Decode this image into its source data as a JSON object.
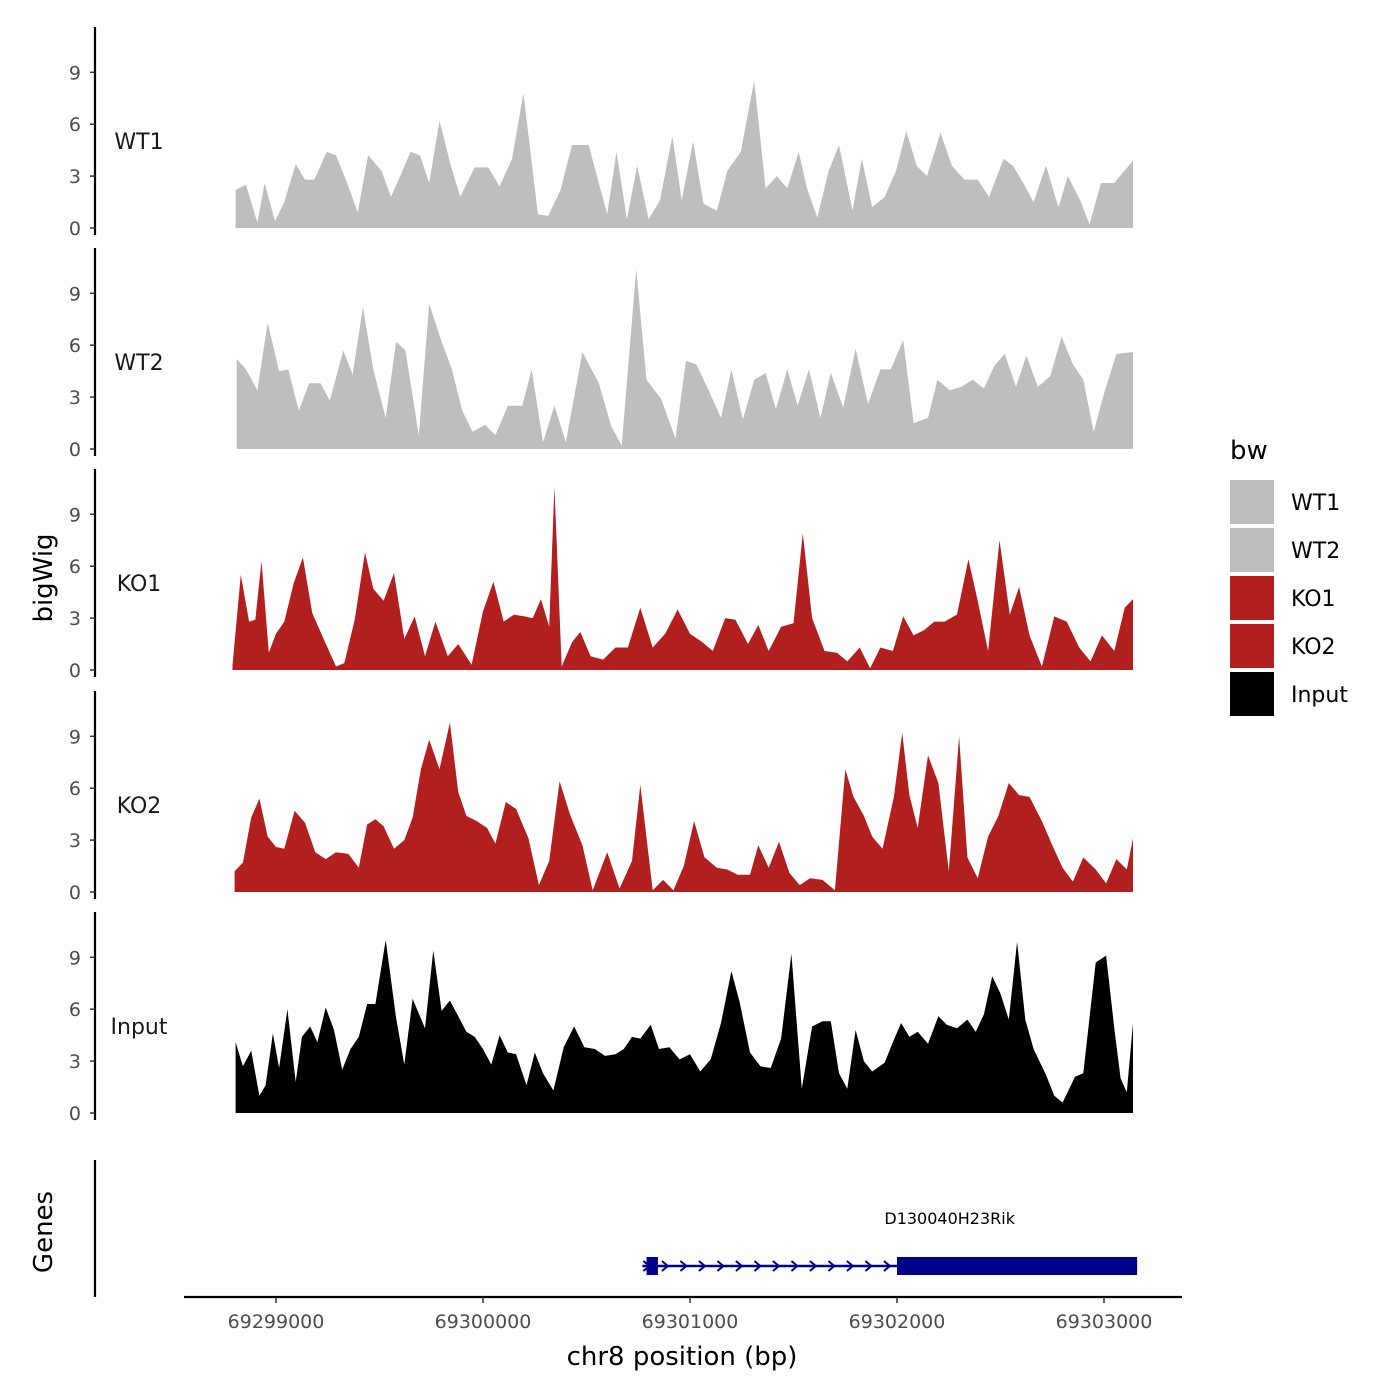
{
  "chart_data": {
    "type": "area",
    "y_axis_title": "bigWig",
    "genes_axis_title": "Genes",
    "x_axis_title": "chr8 position (bp)",
    "x_range": [
      69298650,
      69303200
    ],
    "x_ticks": [
      69299000,
      69300000,
      69301000,
      69302000,
      69303000
    ],
    "x_tick_labels": [
      "69299000",
      "69300000",
      "69301000",
      "69302000",
      "69303000"
    ],
    "y_range": [
      0,
      11.5
    ],
    "y_ticks": [
      0,
      3,
      6,
      9
    ],
    "y_tick_labels": [
      "0",
      "3",
      "6",
      "9"
    ],
    "legend": {
      "title": "bw",
      "entries": [
        {
          "label": "WT1",
          "color": "#bebebe"
        },
        {
          "label": "WT2",
          "color": "#bebebe"
        },
        {
          "label": "KO1",
          "color": "#b21f1f"
        },
        {
          "label": "KO2",
          "color": "#b21f1f"
        },
        {
          "label": "Input",
          "color": "#000000"
        }
      ]
    },
    "series": [
      {
        "name": "WT1",
        "color": "#bebebe",
        "x": [
          69298805,
          69298855,
          69298910,
          69298945,
          69298995,
          69299040,
          69299095,
          69299140,
          69299185,
          69299245,
          69299290,
          69299340,
          69299395,
          69299445,
          69299510,
          69299555,
          69299600,
          69299650,
          69299695,
          69299740,
          69299790,
          69299845,
          69299890,
          69299960,
          69300025,
          69300080,
          69300140,
          69300195,
          69300265,
          69300315,
          69300375,
          69300430,
          69300510,
          69300600,
          69300645,
          69300695,
          69300745,
          69300800,
          69300855,
          69300915,
          69300960,
          69301015,
          69301065,
          69301130,
          69301180,
          69301245,
          69301310,
          69301365,
          69301420,
          69301470,
          69301525,
          69301565,
          69301615,
          69301670,
          69301720,
          69301785,
          69301830,
          69301880,
          69301940,
          69301995,
          69302045,
          69302095,
          69302145,
          69302210,
          69302265,
          69302325,
          69302390,
          69302445,
          69302515,
          69302560,
          69302610,
          69302660,
          69302720,
          69302780,
          69302825,
          69302885,
          69302930,
          69302985,
          69303050,
          69303140
        ],
        "values": [
          2.2,
          2.5,
          0.3,
          2.6,
          0.4,
          1.5,
          3.7,
          2.8,
          2.8,
          4.4,
          4.2,
          2.7,
          0.9,
          4.2,
          3.3,
          1.8,
          3.0,
          4.4,
          4.2,
          2.6,
          6.2,
          3.6,
          1.8,
          3.5,
          3.5,
          2.4,
          4.0,
          7.8,
          0.8,
          0.7,
          2.2,
          4.8,
          4.8,
          0.8,
          4.4,
          0.5,
          3.6,
          0.5,
          1.6,
          5.3,
          1.6,
          5.0,
          1.4,
          1.0,
          3.3,
          4.4,
          8.5,
          2.3,
          3.0,
          2.3,
          4.4,
          2.3,
          0.6,
          3.3,
          4.8,
          1.0,
          4.0,
          1.2,
          1.8,
          3.3,
          5.6,
          3.6,
          3.0,
          5.5,
          3.6,
          2.8,
          2.8,
          1.8,
          4.0,
          3.6,
          2.6,
          1.5,
          3.6,
          1.2,
          3.0,
          1.6,
          0.2,
          2.6,
          2.6,
          3.9
        ]
      },
      {
        "name": "WT2",
        "color": "#bebebe",
        "x": [
          69298810,
          69298855,
          69298910,
          69298960,
          69299015,
          69299060,
          69299110,
          69299160,
          69299215,
          69299260,
          69299325,
          69299370,
          69299420,
          69299470,
          69299530,
          69299580,
          69299625,
          69299690,
          69299740,
          69299800,
          69299850,
          69299900,
          69299950,
          69300010,
          69300060,
          69300120,
          69300190,
          69300235,
          69300290,
          69300345,
          69300400,
          69300480,
          69300560,
          69300620,
          69300670,
          69300740,
          69300790,
          69300860,
          69300930,
          69300980,
          69301030,
          69301090,
          69301150,
          69301200,
          69301255,
          69301310,
          69301365,
          69301415,
          69301470,
          69301520,
          69301575,
          69301630,
          69301680,
          69301740,
          69301800,
          69301860,
          69301920,
          69301970,
          69302030,
          69302080,
          69302150,
          69302195,
          69302255,
          69302310,
          69302365,
          69302420,
          69302470,
          69302520,
          69302575,
          69302625,
          69302680,
          69302740,
          69302795,
          69302850,
          69302900,
          69302950,
          69303000,
          69303060,
          69303140
        ],
        "values": [
          5.2,
          4.6,
          3.4,
          7.3,
          4.5,
          4.6,
          2.2,
          3.8,
          3.8,
          2.8,
          5.7,
          4.3,
          8.2,
          4.6,
          1.8,
          6.2,
          5.7,
          0.8,
          8.4,
          6.2,
          4.6,
          2.2,
          1.0,
          1.4,
          0.8,
          2.5,
          2.5,
          4.6,
          0.4,
          2.5,
          0.4,
          5.6,
          3.8,
          1.3,
          0.2,
          10.4,
          4.0,
          2.9,
          0.6,
          5.1,
          4.9,
          3.4,
          1.8,
          4.6,
          1.7,
          4.0,
          4.4,
          2.3,
          4.6,
          2.5,
          4.6,
          1.8,
          4.4,
          2.4,
          5.8,
          2.6,
          4.6,
          4.6,
          6.3,
          1.5,
          1.8,
          4.0,
          3.4,
          3.6,
          4.0,
          3.5,
          4.8,
          5.5,
          3.6,
          5.4,
          3.6,
          4.2,
          6.5,
          4.9,
          4.0,
          1.0,
          3.2,
          5.5,
          5.6
        ]
      },
      {
        "name": "KO1",
        "color": "#b21f1f",
        "x": [
          69298790,
          69298830,
          69298870,
          69298900,
          69298930,
          69298965,
          69299000,
          69299040,
          69299085,
          69299130,
          69299175,
          69299230,
          69299290,
          69299330,
          69299380,
          69299430,
          69299470,
          69299520,
          69299570,
          69299620,
          69299670,
          69299720,
          69299770,
          69299830,
          69299880,
          69299945,
          69300000,
          69300050,
          69300100,
          69300150,
          69300200,
          69300240,
          69300280,
          69300320,
          69300345,
          69300380,
          69300430,
          69300470,
          69300520,
          69300580,
          69300640,
          69300700,
          69300760,
          69300820,
          69300880,
          69300940,
          69301000,
          69301060,
          69301110,
          69301170,
          69301220,
          69301280,
          69301330,
          69301380,
          69301440,
          69301500,
          69301545,
          69301590,
          69301650,
          69301710,
          69301760,
          69301820,
          69301870,
          69301920,
          69301980,
          69302030,
          69302080,
          69302130,
          69302180,
          69302230,
          69302290,
          69302345,
          69302390,
          69302440,
          69302495,
          69302545,
          69302590,
          69302640,
          69302700,
          69302760,
          69302820,
          69302880,
          69302935,
          69302990,
          69303050,
          69303100,
          69303140
        ],
        "values": [
          0.3,
          5.5,
          2.8,
          2.9,
          6.3,
          1.0,
          2.1,
          2.8,
          5.0,
          6.5,
          3.3,
          1.8,
          0.2,
          0.4,
          2.9,
          6.8,
          4.7,
          4.0,
          5.6,
          1.8,
          3.1,
          0.8,
          2.8,
          0.8,
          1.5,
          0.3,
          3.4,
          5.1,
          2.8,
          3.2,
          3.1,
          3.0,
          4.1,
          2.5,
          10.6,
          0.2,
          1.6,
          2.2,
          0.8,
          0.6,
          1.3,
          1.3,
          3.6,
          1.3,
          2.1,
          3.5,
          2.1,
          1.6,
          1.1,
          3.0,
          2.9,
          1.5,
          2.6,
          1.1,
          2.5,
          2.7,
          7.9,
          3.0,
          1.1,
          1.0,
          0.5,
          1.3,
          0.1,
          1.3,
          1.1,
          3.1,
          2.0,
          2.3,
          2.8,
          2.8,
          3.2,
          6.4,
          4.0,
          1.1,
          7.5,
          3.2,
          4.8,
          2.0,
          0.2,
          3.1,
          2.8,
          1.3,
          0.5,
          2.0,
          1.1,
          3.6,
          4.1
        ]
      },
      {
        "name": "KO2",
        "color": "#b21f1f",
        "x": [
          69298800,
          69298840,
          69298880,
          69298920,
          69298960,
          69299000,
          69299040,
          69299090,
          69299140,
          69299190,
          69299240,
          69299290,
          69299350,
          69299400,
          69299440,
          69299480,
          69299520,
          69299570,
          69299620,
          69299660,
          69299700,
          69299740,
          69299790,
          69299840,
          69299880,
          69299920,
          69299970,
          69300020,
          69300060,
          69300110,
          69300160,
          69300220,
          69300270,
          69300320,
          69300370,
          69300420,
          69300480,
          69300530,
          69300600,
          69300660,
          69300720,
          69300760,
          69300820,
          69300870,
          69300920,
          69300970,
          69301020,
          69301070,
          69301130,
          69301180,
          69301230,
          69301290,
          69301330,
          69301380,
          69301430,
          69301480,
          69301530,
          69301580,
          69301640,
          69301700,
          69301750,
          69301790,
          69301840,
          69301880,
          69301930,
          69301985,
          69302025,
          69302060,
          69302100,
          69302150,
          69302200,
          69302250,
          69302300,
          69302340,
          69302390,
          69302440,
          69302490,
          69302540,
          69302590,
          69302640,
          69302700,
          69302750,
          69302800,
          69302850,
          69302900,
          69302960,
          69303010,
          69303060,
          69303110,
          69303140
        ],
        "values": [
          1.2,
          1.7,
          4.3,
          5.4,
          3.2,
          2.6,
          2.5,
          4.7,
          4.0,
          2.3,
          1.9,
          2.3,
          2.2,
          1.4,
          3.9,
          4.2,
          3.8,
          2.5,
          3.0,
          4.3,
          7.1,
          8.8,
          7.1,
          9.8,
          5.8,
          4.4,
          4.1,
          3.7,
          2.8,
          5.2,
          4.8,
          3.1,
          0.4,
          1.8,
          6.4,
          4.5,
          2.7,
          0.1,
          2.3,
          0.2,
          1.8,
          6.2,
          0.1,
          0.7,
          0.1,
          1.5,
          4.1,
          2.0,
          1.4,
          1.3,
          1.0,
          1.0,
          2.7,
          1.4,
          2.9,
          1.1,
          0.4,
          0.8,
          0.7,
          0.1,
          7.1,
          5.5,
          4.4,
          3.2,
          2.5,
          5.5,
          9.2,
          5.6,
          3.7,
          7.9,
          6.3,
          1.2,
          9.0,
          2.0,
          0.8,
          3.2,
          4.4,
          6.3,
          5.6,
          5.5,
          4.1,
          2.7,
          1.4,
          0.6,
          2.0,
          1.3,
          0.5,
          1.9,
          1.3,
          3.1
        ]
      },
      {
        "name": "Input",
        "color": "#000000",
        "x": [
          69298805,
          69298840,
          69298880,
          69298920,
          69298950,
          69298985,
          69299015,
          69299055,
          69299095,
          69299125,
          69299165,
          69299200,
          69299240,
          69299280,
          69299320,
          69299360,
          69299400,
          69299440,
          69299480,
          69299530,
          69299580,
          69299620,
          69299660,
          69299720,
          69299760,
          69299800,
          69299840,
          69299880,
          69299920,
          69299960,
          69300000,
          69300040,
          69300080,
          69300120,
          69300160,
          69300210,
          69300250,
          69300290,
          69300340,
          69300390,
          69300440,
          69300490,
          69300540,
          69300590,
          69300640,
          69300680,
          69300720,
          69300760,
          69300810,
          69300850,
          69300900,
          69300950,
          69301000,
          69301050,
          69301100,
          69301150,
          69301200,
          69301240,
          69301290,
          69301340,
          69301390,
          69301440,
          69301490,
          69301540,
          69301590,
          69301640,
          69301680,
          69301720,
          69301760,
          69301800,
          69301840,
          69301880,
          69301940,
          69301980,
          69302020,
          69302060,
          69302100,
          69302150,
          69302200,
          69302240,
          69302290,
          69302340,
          69302380,
          69302420,
          69302460,
          69302500,
          69302540,
          69302580,
          69302620,
          69302660,
          69302720,
          69302760,
          69302800,
          69302860,
          69302900,
          69302960,
          69303010,
          69303050,
          69303080,
          69303110,
          69303140
        ],
        "values": [
          4.1,
          2.7,
          3.6,
          1.0,
          1.6,
          4.6,
          2.6,
          6.0,
          1.8,
          4.4,
          5.0,
          4.1,
          6.1,
          4.8,
          2.5,
          3.7,
          4.4,
          6.3,
          6.3,
          10.0,
          5.5,
          2.8,
          6.6,
          4.9,
          9.4,
          5.9,
          6.5,
          5.6,
          4.7,
          4.4,
          3.7,
          2.8,
          4.5,
          3.5,
          3.4,
          1.6,
          3.5,
          2.3,
          1.3,
          3.8,
          5.0,
          3.8,
          3.7,
          3.3,
          3.4,
          3.7,
          4.4,
          4.3,
          5.1,
          3.7,
          3.8,
          3.1,
          3.4,
          2.4,
          3.1,
          5.2,
          8.2,
          6.4,
          3.5,
          2.7,
          2.6,
          4.3,
          9.2,
          1.4,
          5.0,
          5.3,
          5.3,
          2.3,
          1.4,
          4.8,
          3.0,
          2.4,
          2.9,
          4.1,
          5.2,
          4.4,
          4.7,
          4.0,
          5.6,
          5.1,
          4.9,
          5.4,
          4.7,
          5.7,
          7.9,
          6.9,
          5.4,
          9.9,
          5.4,
          3.7,
          2.2,
          1.0,
          0.6,
          2.1,
          2.3,
          8.7,
          9.1,
          4.9,
          2.0,
          1.2,
          5.2
        ]
      }
    ],
    "gene": {
      "name": "D130040H23Rik",
      "color": "#00008b",
      "start": 69300770,
      "end": 69303160,
      "thin_end": 69302000,
      "thick_start": 69302000,
      "small_block_start": 69300790,
      "small_block_end": 69300845,
      "strand": "+"
    }
  }
}
